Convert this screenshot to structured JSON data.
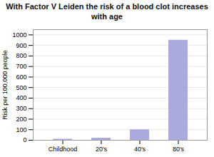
{
  "chart_data": {
    "type": "bar",
    "title": "With Factor V Leiden the risk of a blood clot increases\nwith age",
    "categories": [
      "Childhood",
      "20's",
      "40's",
      "80's"
    ],
    "values": [
      10,
      20,
      100,
      950
    ],
    "color": "#aaaadd",
    "ylabel": "Risk per 100,000 people",
    "ylim": [
      0,
      1050
    ],
    "yticks": [
      0,
      100,
      200,
      300,
      400,
      500,
      600,
      700,
      800,
      900,
      1000
    ],
    "grid": true
  }
}
